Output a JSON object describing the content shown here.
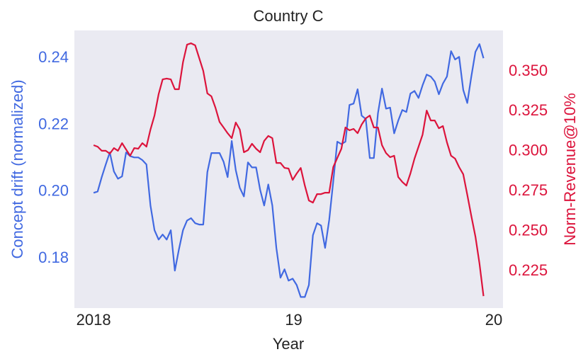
{
  "chart_data": {
    "type": "line",
    "title": "Country C",
    "xlabel": "Year",
    "ylabel": "Concept drift (normalized)",
    "y2label": "Norm-Revenue@10%",
    "ylabel_color": "#4169e1",
    "y2label_color": "#dc143c",
    "background": "#eaeaf2",
    "grid": false,
    "xlim": [
      2017.904,
      2020.046
    ],
    "xticks": [
      2018,
      {
        "value": 2019,
        "label": "19"
      },
      {
        "value": 2020,
        "label": "20"
      }
    ],
    "ylim": [
      0.1652,
      0.2483
    ],
    "yticks": [
      0.18,
      {
        "value": 0.2,
        "label": "0.20"
      },
      0.22,
      0.24
    ],
    "y2lim": [
      0.202,
      0.3757
    ],
    "y2ticks": [
      0.225,
      {
        "value": 0.25,
        "label": "0.250"
      },
      0.275,
      {
        "value": 0.3,
        "label": "0.300"
      },
      0.325,
      {
        "value": 0.35,
        "label": "0.350"
      }
    ],
    "x": [
      2018,
      2018.0203,
      2018.0406,
      2018.0609,
      2018.0812,
      2018.1015,
      2018.1218,
      2018.1421,
      2018.1624,
      2018.1827,
      2018.203,
      2018.2233,
      2018.2436,
      2018.2639,
      2018.2842,
      2018.3045,
      2018.3248,
      2018.3451,
      2018.3654,
      2018.3857,
      2018.406,
      2018.4263,
      2018.4466,
      2018.4669,
      2018.4872,
      2018.5075,
      2018.5278,
      2018.5481,
      2018.5684,
      2018.5887,
      2018.609,
      2018.6293,
      2018.6496,
      2018.6699,
      2018.6902,
      2018.7105,
      2018.7308,
      2018.7511,
      2018.7714,
      2018.7917,
      2018.812,
      2018.8323,
      2018.8526,
      2018.8729,
      2018.8932,
      2018.9135,
      2018.9338,
      2018.9541,
      2018.9744,
      2018.9947,
      2019.015,
      2019.0353,
      2019.0556,
      2019.0759,
      2019.0962,
      2019.1165,
      2019.1368,
      2019.1571,
      2019.1774,
      2019.1977,
      2019.218,
      2019.2383,
      2019.2586,
      2019.2789,
      2019.2992,
      2019.3195,
      2019.3398,
      2019.3601,
      2019.3804,
      2019.4007,
      2019.421,
      2019.4413,
      2019.4616,
      2019.4819,
      2019.5022,
      2019.5225,
      2019.5428,
      2019.5631,
      2019.5834,
      2019.6037,
      2019.624,
      2019.6443,
      2019.6646,
      2019.6849,
      2019.7052,
      2019.7255,
      2019.7458,
      2019.7661,
      2019.7864,
      2019.8067,
      2019.827,
      2019.8473,
      2019.8676,
      2019.8879,
      2019.9082,
      2019.9285,
      2019.9488
    ],
    "series": [
      {
        "color": "#4169e1",
        "axis": "y",
        "values": [
          0.1997,
          0.2001,
          0.2044,
          0.2082,
          0.2118,
          0.2061,
          0.2039,
          0.2046,
          0.2118,
          0.2107,
          0.2103,
          0.2103,
          0.2095,
          0.2082,
          0.1959,
          0.1885,
          0.1857,
          0.1872,
          0.1857,
          0.1885,
          0.1764,
          0.1827,
          0.1885,
          0.1914,
          0.1921,
          0.1906,
          0.1902,
          0.1902,
          0.2059,
          0.2116,
          0.2116,
          0.2116,
          0.209,
          0.2044,
          0.2152,
          0.2065,
          0.2012,
          0.1986,
          0.2088,
          0.2073,
          0.2073,
          0.2006,
          0.1959,
          0.2022,
          0.1959,
          0.1832,
          0.1743,
          0.1768,
          0.1734,
          0.174,
          0.1721,
          0.1685,
          0.1685,
          0.1721,
          0.187,
          0.1906,
          0.1899,
          0.1832,
          0.1916,
          0.2031,
          0.215,
          0.2143,
          0.215,
          0.226,
          0.2264,
          0.2307,
          0.2228,
          0.2218,
          0.2101,
          0.2101,
          0.2235,
          0.2309,
          0.2249,
          0.2252,
          0.2175,
          0.2213,
          0.2245,
          0.2239,
          0.2294,
          0.2302,
          0.2281,
          0.2319,
          0.2351,
          0.2345,
          0.233,
          0.2292,
          0.2324,
          0.2345,
          0.2421,
          0.2396,
          0.2404,
          0.2305,
          0.2266,
          0.2345,
          0.2419,
          0.2442,
          0.24
        ]
      },
      {
        "color": "#dc143c",
        "axis": "y2",
        "values": [
          0.3039,
          0.303,
          0.3004,
          0.3004,
          0.2986,
          0.3021,
          0.3004,
          0.3052,
          0.3012,
          0.2973,
          0.3021,
          0.3017,
          0.3052,
          0.303,
          0.3137,
          0.3225,
          0.3358,
          0.3451,
          0.3456,
          0.3451,
          0.3389,
          0.3389,
          0.3558,
          0.3668,
          0.3677,
          0.3664,
          0.3584,
          0.3504,
          0.3363,
          0.3345,
          0.3274,
          0.3185,
          0.315,
          0.3114,
          0.3083,
          0.3181,
          0.3137,
          0.2995,
          0.3008,
          0.3048,
          0.3017,
          0.2995,
          0.3066,
          0.3097,
          0.3083,
          0.2928,
          0.2928,
          0.2897,
          0.2893,
          0.2822,
          0.2862,
          0.2897,
          0.2786,
          0.2693,
          0.268,
          0.2733,
          0.2733,
          0.2742,
          0.2742,
          0.2902,
          0.2959,
          0.3017,
          0.315,
          0.3132,
          0.3141,
          0.3114,
          0.3168,
          0.3207,
          0.3225,
          0.315,
          0.315,
          0.3039,
          0.299,
          0.2964,
          0.2973,
          0.284,
          0.2809,
          0.2786,
          0.2862,
          0.2955,
          0.303,
          0.3105,
          0.3256,
          0.3194,
          0.3194,
          0.3145,
          0.3159,
          0.3057,
          0.2973,
          0.2955,
          0.2902,
          0.2857,
          0.2729,
          0.2596,
          0.2467,
          0.2299,
          0.2095
        ]
      }
    ]
  }
}
